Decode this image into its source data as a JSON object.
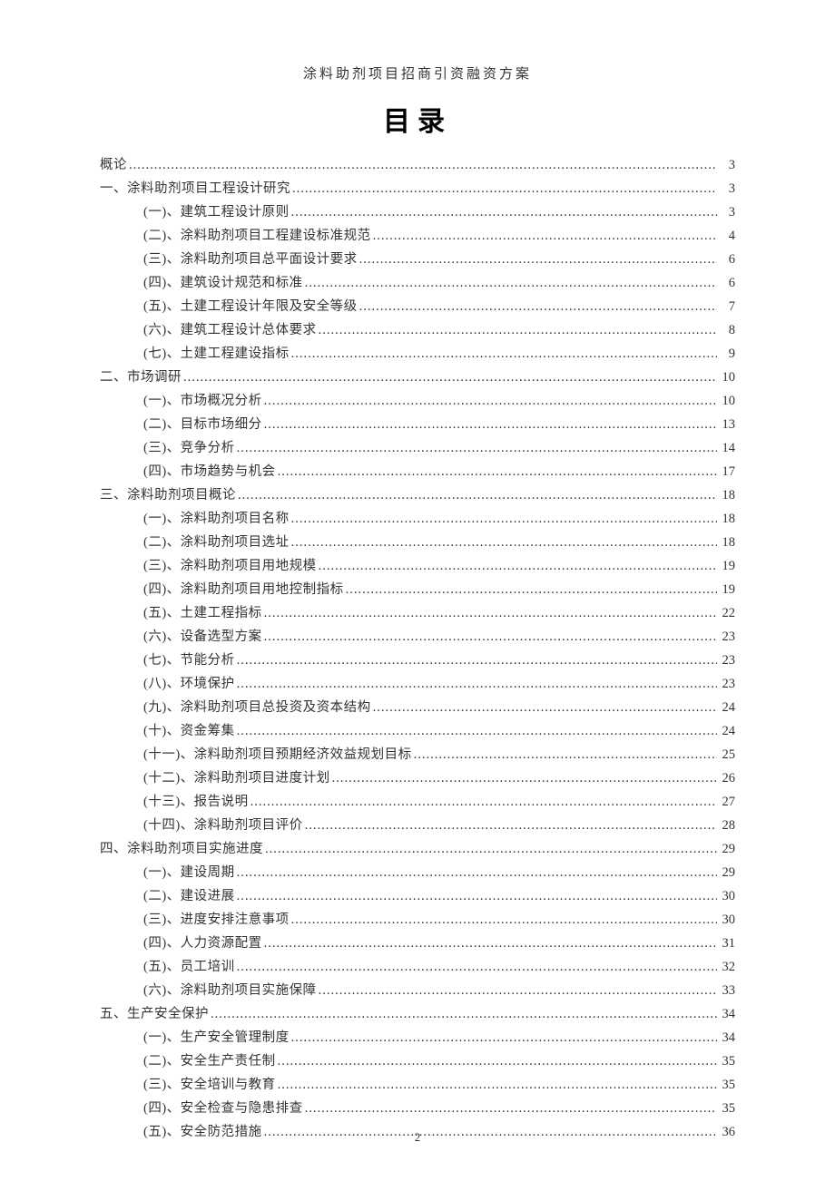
{
  "header": "涂料助剂项目招商引资融资方案",
  "title": "目录",
  "page_number": "2",
  "toc": [
    {
      "level": 0,
      "label": "概论",
      "page": "3"
    },
    {
      "level": 0,
      "label": "一、涂料助剂项目工程设计研究",
      "page": "3"
    },
    {
      "level": 1,
      "label": "(一)、建筑工程设计原则",
      "page": "3"
    },
    {
      "level": 1,
      "label": "(二)、涂料助剂项目工程建设标准规范",
      "page": "4"
    },
    {
      "level": 1,
      "label": "(三)、涂料助剂项目总平面设计要求",
      "page": "6"
    },
    {
      "level": 1,
      "label": "(四)、建筑设计规范和标准",
      "page": "6"
    },
    {
      "level": 1,
      "label": "(五)、土建工程设计年限及安全等级",
      "page": "7"
    },
    {
      "level": 1,
      "label": "(六)、建筑工程设计总体要求",
      "page": "8"
    },
    {
      "level": 1,
      "label": "(七)、土建工程建设指标",
      "page": "9"
    },
    {
      "level": 0,
      "label": "二、市场调研",
      "page": "10"
    },
    {
      "level": 1,
      "label": "(一)、市场概况分析",
      "page": "10"
    },
    {
      "level": 1,
      "label": "(二)、目标市场细分",
      "page": "13"
    },
    {
      "level": 1,
      "label": "(三)、竞争分析",
      "page": "14"
    },
    {
      "level": 1,
      "label": "(四)、市场趋势与机会",
      "page": "17"
    },
    {
      "level": 0,
      "label": "三、涂料助剂项目概论",
      "page": "18"
    },
    {
      "level": 1,
      "label": "(一)、涂料助剂项目名称",
      "page": "18"
    },
    {
      "level": 1,
      "label": "(二)、涂料助剂项目选址",
      "page": "18"
    },
    {
      "level": 1,
      "label": "(三)、涂料助剂项目用地规模",
      "page": "19"
    },
    {
      "level": 1,
      "label": "(四)、涂料助剂项目用地控制指标",
      "page": "19"
    },
    {
      "level": 1,
      "label": "(五)、土建工程指标",
      "page": "22"
    },
    {
      "level": 1,
      "label": "(六)、设备选型方案",
      "page": "23"
    },
    {
      "level": 1,
      "label": "(七)、节能分析",
      "page": "23"
    },
    {
      "level": 1,
      "label": "(八)、环境保护",
      "page": "23"
    },
    {
      "level": 1,
      "label": "(九)、涂料助剂项目总投资及资本结构",
      "page": "24"
    },
    {
      "level": 1,
      "label": "(十)、资金筹集",
      "page": "24"
    },
    {
      "level": 1,
      "label": "(十一)、涂料助剂项目预期经济效益规划目标",
      "page": "25"
    },
    {
      "level": 1,
      "label": "(十二)、涂料助剂项目进度计划",
      "page": "26"
    },
    {
      "level": 1,
      "label": "(十三)、报告说明",
      "page": "27"
    },
    {
      "level": 1,
      "label": "(十四)、涂料助剂项目评价",
      "page": "28"
    },
    {
      "level": 0,
      "label": "四、涂料助剂项目实施进度",
      "page": "29"
    },
    {
      "level": 1,
      "label": "(一)、建设周期",
      "page": "29"
    },
    {
      "level": 1,
      "label": "(二)、建设进展",
      "page": "30"
    },
    {
      "level": 1,
      "label": "(三)、进度安排注意事项",
      "page": "30"
    },
    {
      "level": 1,
      "label": "(四)、人力资源配置",
      "page": "31"
    },
    {
      "level": 1,
      "label": "(五)、员工培训",
      "page": "32"
    },
    {
      "level": 1,
      "label": "(六)、涂料助剂项目实施保障",
      "page": "33"
    },
    {
      "level": 0,
      "label": "五、生产安全保护",
      "page": "34"
    },
    {
      "level": 1,
      "label": "(一)、生产安全管理制度",
      "page": "34"
    },
    {
      "level": 1,
      "label": "(二)、安全生产责任制",
      "page": "35"
    },
    {
      "level": 1,
      "label": "(三)、安全培训与教育",
      "page": "35"
    },
    {
      "level": 1,
      "label": "(四)、安全检查与隐患排查",
      "page": "35"
    },
    {
      "level": 1,
      "label": "(五)、安全防范措施",
      "page": "36"
    }
  ]
}
